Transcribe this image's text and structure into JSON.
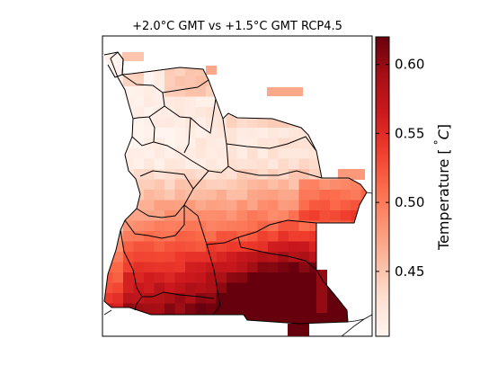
{
  "title": "+2.0°C GMT vs +1.5°C GMT RCP4.5",
  "colorbar": {
    "label": "Temperature [ °C]",
    "label_prefix": "Temperature [",
    "label_unit": "°C",
    "label_suffix": "]",
    "ticks": [
      "0.45",
      "0.50",
      "0.55",
      "0.60"
    ],
    "tick_values": [
      0.45,
      0.5,
      0.55,
      0.6
    ],
    "range": [
      0.403,
      0.62
    ],
    "colormap": "Reds",
    "colors": [
      "#fff5f0",
      "#fee0d2",
      "#fcbba1",
      "#fc9272",
      "#fb6a4a",
      "#ef3b2c",
      "#cb181d",
      "#a50f15",
      "#67000d"
    ]
  },
  "map": {
    "region": "Angola",
    "grid_resolution_deg": 0.5,
    "lon_range": [
      11.5,
      24.5
    ],
    "lat_range": [
      -18.5,
      -4
    ]
  }
}
